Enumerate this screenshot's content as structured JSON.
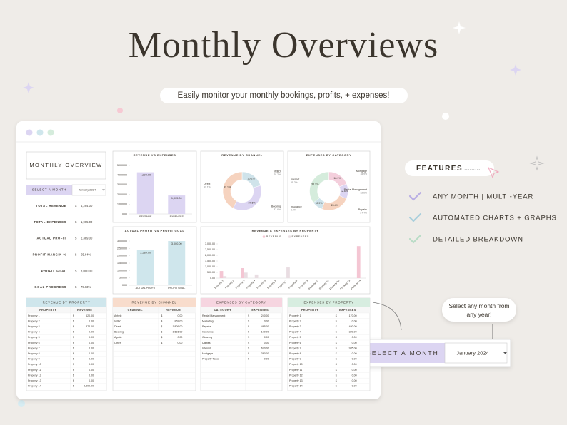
{
  "header": {
    "title": "Monthly Overviews",
    "subtitle": "Easily monitor your monthly bookings, profits, + expenses!"
  },
  "features": {
    "heading": "FEATURES",
    "items": [
      "ANY MONTH | MULTI-YEAR",
      "AUTOMATED CHARTS + GRAPHS",
      "DETAILED BREAKDOWN"
    ]
  },
  "callout": {
    "text": "Select any month from any year!",
    "select_label": "SELECT A MONTH",
    "month": "January 2024"
  },
  "overview": {
    "title": "MONTHLY OVERVIEW",
    "select_label": "SELECT A MONTH",
    "month": "January 2024",
    "metrics": [
      {
        "label": "TOTAL REVENUE",
        "currency": "$",
        "value": "4,294.00"
      },
      {
        "label": "TOTAL EXPENSES",
        "currency": "$",
        "value": "1,905.00"
      },
      {
        "label": "ACTUAL PROFIT",
        "currency": "$",
        "value": "2,389.00"
      },
      {
        "label": "PROFIT MARGIN %",
        "currency": "$",
        "value": "55.64%"
      },
      {
        "label": "PROFIT GOAL",
        "currency": "$",
        "value": "3,000.00"
      },
      {
        "label": "GOAL PROGRESS",
        "currency": "$",
        "value": "79.63%"
      }
    ]
  },
  "chart_data": [
    {
      "type": "bar",
      "title": "REVENUE VS EXPENSES",
      "categories": [
        "REVENUE",
        "EXPENSES"
      ],
      "values": [
        4294,
        1905
      ],
      "value_labels": [
        "4,294.00",
        "1,905.00"
      ],
      "color": "#dcd5f2",
      "ylim": [
        0,
        5000
      ],
      "yticks": [
        {
          "value": 0,
          "label": "0.00"
        },
        {
          "value": 1000,
          "label": "1,000.00"
        },
        {
          "value": 2000,
          "label": "2,000.00"
        },
        {
          "value": 3000,
          "label": "3,000.00"
        },
        {
          "value": 4000,
          "label": "4,000.00"
        },
        {
          "value": 5000,
          "label": "5,000.00"
        }
      ]
    },
    {
      "type": "pie",
      "title": "REVENUE BY CHANNEL",
      "categories": [
        "VRBO",
        "Booking",
        "Direct"
      ],
      "values": [
        20.2,
        37.6,
        42.1
      ],
      "value_labels": [
        "20.2%",
        "37.6%",
        "42.1%"
      ],
      "colors": [
        "#cfe3ea",
        "#dcd5f2",
        "#f6d3bf"
      ]
    },
    {
      "type": "pie",
      "title": "EXPENSES BY CATEGORY",
      "categories": [
        "Mortgage",
        "Rental Management",
        "Repairs",
        "Insurance",
        "Internet"
      ],
      "values": [
        18.9,
        12.6,
        24.4,
        8.9,
        35.2
      ],
      "value_labels": [
        "18.9%",
        "12.6%",
        "24.4%",
        "8.9%",
        "35.2%"
      ],
      "colors": [
        "#f4cfdc",
        "#dcd5f2",
        "#f6d3bf",
        "#cfe3ea",
        "#d5ecdc"
      ]
    },
    {
      "type": "bar",
      "title": "ACTUAL PROFIT VS PROFIT GOAL",
      "categories": [
        "ACTUAL PROFIT",
        "PROFIT GOAL"
      ],
      "values": [
        2389,
        3000
      ],
      "value_labels": [
        "2,389.00",
        "3,000.00"
      ],
      "color": "#cfe6ec",
      "ylim": [
        0,
        3000
      ],
      "yticks": [
        {
          "value": 0,
          "label": "0.00"
        },
        {
          "value": 500,
          "label": "500.00"
        },
        {
          "value": 1000,
          "label": "1,000.00"
        },
        {
          "value": 1500,
          "label": "1,500.00"
        },
        {
          "value": 2000,
          "label": "2,000.00"
        },
        {
          "value": 2500,
          "label": "2,500.00"
        },
        {
          "value": 3000,
          "label": "3,000.00"
        }
      ]
    },
    {
      "type": "bar",
      "title": "REVENUE & EXPENSES BY PROPERTY",
      "legend": "top",
      "categories": [
        "Property 1",
        "Property 2",
        "Property 3",
        "Property 4",
        "Property 5",
        "Property 6",
        "Property 7",
        "Property 8",
        "Property 9",
        "Property 10",
        "Property 11",
        "Property 12",
        "Property 13",
        "Property 14"
      ],
      "series": [
        {
          "name": "REVENUE",
          "color": "#f4c6d3",
          "values": [
            620,
            0,
            874,
            0,
            0,
            0,
            0,
            0,
            0,
            0,
            0,
            0,
            0,
            2800
          ]
        },
        {
          "name": "EXPENSES",
          "color": "#e9dde2",
          "values": [
            170,
            0,
            480,
            320,
            0,
            0,
            935,
            0,
            0,
            0,
            0,
            0,
            0,
            0
          ]
        }
      ],
      "ylim": [
        0,
        3000
      ],
      "yticks": [
        {
          "value": 0,
          "label": "0.00"
        },
        {
          "value": 500,
          "label": "500.00"
        },
        {
          "value": 1000,
          "label": "1,000.00"
        },
        {
          "value": 1500,
          "label": "1,500.00"
        },
        {
          "value": 2000,
          "label": "2,000.00"
        },
        {
          "value": 2500,
          "label": "2,500.00"
        },
        {
          "value": 3000,
          "label": "3,000.00"
        }
      ]
    }
  ],
  "tables": [
    {
      "title": "REVENUE BY PROPERTY",
      "columns": [
        "PROPERTY",
        "REVENUE"
      ],
      "rows": [
        [
          "Property 1",
          "$",
          "620.00"
        ],
        [
          "Property 2",
          "$",
          "0.00"
        ],
        [
          "Property 3",
          "$",
          "874.00"
        ],
        [
          "Property 4",
          "$",
          "0.00"
        ],
        [
          "Property 5",
          "$",
          "0.00"
        ],
        [
          "Property 6",
          "$",
          "0.00"
        ],
        [
          "Property 7",
          "$",
          "0.00"
        ],
        [
          "Property 8",
          "$",
          "0.00"
        ],
        [
          "Property 9",
          "$",
          "0.00"
        ],
        [
          "Property 10",
          "$",
          "0.00"
        ],
        [
          "Property 11",
          "$",
          "0.00"
        ],
        [
          "Property 12",
          "$",
          "0.00"
        ],
        [
          "Property 13",
          "$",
          "0.00"
        ],
        [
          "Property 14",
          "$",
          "2,800.00"
        ]
      ]
    },
    {
      "title": "REVENUE BY CHANNEL",
      "columns": [
        "CHANNEL",
        "REVENUE"
      ],
      "rows": [
        [
          "Airbnb",
          "$",
          "0.00"
        ],
        [
          "VRBO",
          "$",
          "869.00"
        ],
        [
          "Direct",
          "$",
          "1,809.00"
        ],
        [
          "Booking",
          "$",
          "1,616.00"
        ],
        [
          "Agoda",
          "$",
          "0.00"
        ],
        [
          "Other",
          "$",
          "0.00"
        ]
      ]
    },
    {
      "title": "EXPENSES BY CATEGORY",
      "columns": [
        "CATEGORY",
        "EXPENSES"
      ],
      "rows": [
        [
          "Rental Management",
          "$",
          "240.00"
        ],
        [
          "Marketing",
          "$",
          "0.00"
        ],
        [
          "Repairs",
          "$",
          "465.00"
        ],
        [
          "Insurance",
          "$",
          "170.00"
        ],
        [
          "Cleaning",
          "$",
          "0.00"
        ],
        [
          "Utilities",
          "$",
          "0.00"
        ],
        [
          "Internet",
          "$",
          "670.00"
        ],
        [
          "Mortgage",
          "$",
          "360.00"
        ],
        [
          "Property Taxes",
          "$",
          "0.00"
        ]
      ]
    },
    {
      "title": "EXPENSES BY PROPERTY",
      "columns": [
        "PROPERTY",
        "EXPENSES"
      ],
      "rows": [
        [
          "Property 1",
          "$",
          "170.00"
        ],
        [
          "Property 2",
          "$",
          "0.00"
        ],
        [
          "Property 3",
          "$",
          "480.00"
        ],
        [
          "Property 4",
          "$",
          "320.00"
        ],
        [
          "Property 5",
          "$",
          "0.00"
        ],
        [
          "Property 6",
          "$",
          "0.00"
        ],
        [
          "Property 7",
          "$",
          "935.00"
        ],
        [
          "Property 8",
          "$",
          "0.00"
        ],
        [
          "Property 9",
          "$",
          "0.00"
        ],
        [
          "Property 10",
          "$",
          "0.00"
        ],
        [
          "Property 11",
          "$",
          "0.00"
        ],
        [
          "Property 12",
          "$",
          "0.00"
        ],
        [
          "Property 13",
          "$",
          "0.00"
        ],
        [
          "Property 14",
          "$",
          "0.00"
        ]
      ]
    }
  ]
}
